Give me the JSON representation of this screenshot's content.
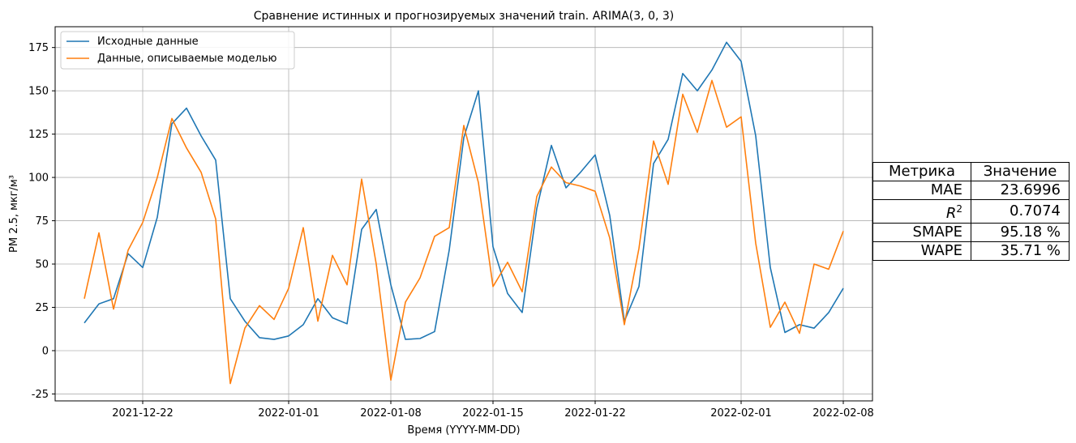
{
  "chart_data": {
    "type": "line",
    "title": "Сравнение истинных и прогнозируемых значений train. ARIMA(3, 0, 3)",
    "xlabel": "Время (YYYY-MM-DD)",
    "ylabel": "PM 2.5, мкг/м³",
    "x_start": "2021-12-18",
    "x_ticks": [
      "2021-12-22",
      "2022-01-01",
      "2022-01-08",
      "2022-01-15",
      "2022-01-22",
      "2022-02-01",
      "2022-02-08"
    ],
    "y_ticks": [
      -25,
      0,
      25,
      50,
      75,
      100,
      125,
      150,
      175
    ],
    "xlim": [
      "2021-12-16",
      "2022-02-10"
    ],
    "ylim": [
      -29,
      187
    ],
    "grid": true,
    "legend_position": "top-left",
    "series": [
      {
        "name": "Исходные данные",
        "color": "#1f77b4",
        "values": [
          16,
          27,
          30,
          56,
          48,
          77,
          131,
          140,
          124,
          110,
          30,
          17,
          7.5,
          6.5,
          8.5,
          15,
          30,
          19,
          15.5,
          70,
          81.5,
          38,
          6.5,
          7,
          11,
          58,
          123,
          150,
          60,
          33,
          22,
          82,
          118.5,
          94,
          103,
          113,
          78,
          17,
          37,
          108,
          122,
          160,
          150,
          162,
          178,
          167,
          124,
          48,
          10.5,
          15,
          13,
          22,
          36
        ]
      },
      {
        "name": "Данные, описываемые моделью",
        "color": "#ff7f0e",
        "values": [
          30,
          68,
          24,
          58,
          74,
          100,
          134,
          117,
          103,
          76,
          -19,
          13,
          26,
          18,
          36,
          71,
          17,
          55,
          38,
          99,
          50,
          -17,
          28,
          42,
          66,
          71,
          130,
          97,
          37,
          51,
          34,
          89,
          106,
          97,
          95,
          92,
          65,
          15,
          59,
          121,
          96,
          148,
          126,
          156,
          129,
          135,
          62,
          13.5,
          28,
          10,
          50,
          47,
          69
        ]
      }
    ]
  },
  "metrics": {
    "header": [
      "Метрика",
      "Значение"
    ],
    "rows": [
      {
        "label": "MAE",
        "value": "23.6996"
      },
      {
        "label": "R",
        "value": "0.7074"
      },
      {
        "label": "SMAPE",
        "value": "95.18 %"
      },
      {
        "label": "WAPE",
        "value": "35.71 %"
      }
    ],
    "r_squared_exponent": "2"
  }
}
